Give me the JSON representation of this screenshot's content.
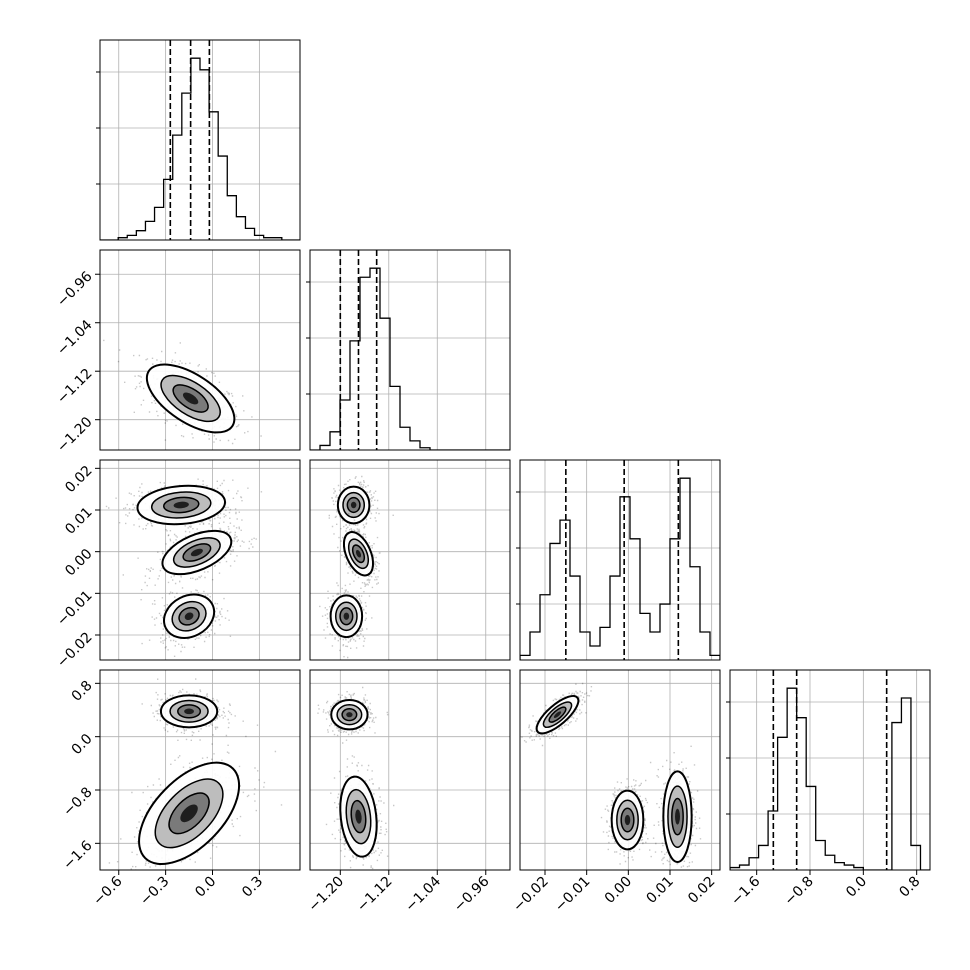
{
  "chart_data": {
    "type": "corner",
    "description_free": true,
    "grid": true,
    "parameters": [
      {
        "range": [
          -0.72,
          0.56
        ],
        "ticks": [
          -0.6,
          -0.3,
          0.0,
          0.3
        ],
        "tick_labels": [
          "−0.6",
          "−0.3",
          "0.0",
          "0.3"
        ],
        "quantiles": [
          -0.27,
          -0.14,
          -0.02
        ],
        "histogram": [
          0,
          0,
          1,
          2,
          4,
          8,
          14,
          26,
          45,
          63,
          78,
          73,
          55,
          36,
          19,
          10,
          5,
          2,
          1,
          1,
          0,
          0
        ]
      },
      {
        "range": [
          -1.25,
          -0.92
        ],
        "ticks": [
          -1.2,
          -1.12,
          -1.04,
          -0.96
        ],
        "tick_labels": [
          "−1.20",
          "−1.12",
          "−1.04",
          "−0.96"
        ],
        "quantiles": [
          -1.2,
          -1.17,
          -1.14
        ],
        "histogram": [
          0,
          2,
          8,
          22,
          48,
          76,
          80,
          58,
          28,
          10,
          4,
          1,
          0,
          0,
          0,
          0,
          0,
          0,
          0,
          0
        ]
      },
      {
        "range": [
          -0.026,
          0.022
        ],
        "ticks": [
          -0.02,
          -0.01,
          0.0,
          0.01,
          0.02
        ],
        "tick_labels": [
          "−0.02",
          "−0.01",
          "0.00",
          "0.01",
          "0.02"
        ],
        "quantiles": [
          -0.015,
          -0.001,
          0.012
        ],
        "histogram": [
          2,
          12,
          28,
          50,
          60,
          36,
          12,
          6,
          14,
          36,
          70,
          52,
          20,
          12,
          24,
          52,
          78,
          40,
          12,
          2
        ]
      },
      {
        "range": [
          -2.0,
          1.0
        ],
        "ticks": [
          -1.6,
          -0.8,
          0.0,
          0.8
        ],
        "tick_labels": [
          "−1.6",
          "−0.8",
          "0.0",
          "0.8"
        ],
        "quantiles": [
          -1.35,
          -1.0,
          0.35
        ],
        "histogram": [
          1,
          2,
          5,
          10,
          24,
          54,
          74,
          62,
          34,
          12,
          6,
          3,
          2,
          1,
          0,
          0,
          0,
          60,
          70,
          10,
          0
        ]
      }
    ],
    "blobs": [
      {
        "x": 0,
        "y": 1,
        "modes": [
          {
            "cx": -0.14,
            "cy": -1.165,
            "sx": 0.14,
            "sy": 0.028,
            "rho": -0.6
          }
        ]
      },
      {
        "x": 0,
        "y": 2,
        "modes": [
          {
            "cx": -0.2,
            "cy": 0.0112,
            "sx": 0.14,
            "sy": 0.0023,
            "rho": 0.15
          },
          {
            "cx": -0.1,
            "cy": -0.0002,
            "sx": 0.11,
            "sy": 0.0026,
            "rho": 0.5
          },
          {
            "cx": -0.15,
            "cy": -0.0155,
            "sx": 0.08,
            "sy": 0.0026,
            "rho": 0.2
          }
        ]
      },
      {
        "x": 0,
        "y": 3,
        "modes": [
          {
            "cx": -0.15,
            "cy": 0.38,
            "sx": 0.09,
            "sy": 0.12,
            "rho": 0.0
          },
          {
            "cx": -0.15,
            "cy": -1.15,
            "sx": 0.16,
            "sy": 0.38,
            "rho": 0.55
          }
        ]
      },
      {
        "x": 1,
        "y": 2,
        "modes": [
          {
            "cx": -1.178,
            "cy": 0.0112,
            "sx": 0.013,
            "sy": 0.0022,
            "rho": 0.0
          },
          {
            "cx": -1.17,
            "cy": -0.0005,
            "sx": 0.012,
            "sy": 0.0026,
            "rho": -0.45
          },
          {
            "cx": -1.19,
            "cy": -0.0155,
            "sx": 0.013,
            "sy": 0.0025,
            "rho": 0.0
          }
        ]
      },
      {
        "x": 1,
        "y": 3,
        "modes": [
          {
            "cx": -1.185,
            "cy": 0.33,
            "sx": 0.015,
            "sy": 0.11,
            "rho": 0.0
          },
          {
            "cx": -1.17,
            "cy": -1.2,
            "sx": 0.015,
            "sy": 0.3,
            "rho": -0.2
          }
        ]
      },
      {
        "x": 2,
        "y": 3,
        "modes": [
          {
            "cx": -0.017,
            "cy": 0.33,
            "sx": 0.0025,
            "sy": 0.14,
            "rho": 0.75
          },
          {
            "cx": -0.0002,
            "cy": -1.25,
            "sx": 0.0019,
            "sy": 0.22,
            "rho": 0.0
          },
          {
            "cx": 0.0118,
            "cy": -1.2,
            "sx": 0.0017,
            "sy": 0.34,
            "rho": 0.0
          }
        ]
      }
    ]
  }
}
